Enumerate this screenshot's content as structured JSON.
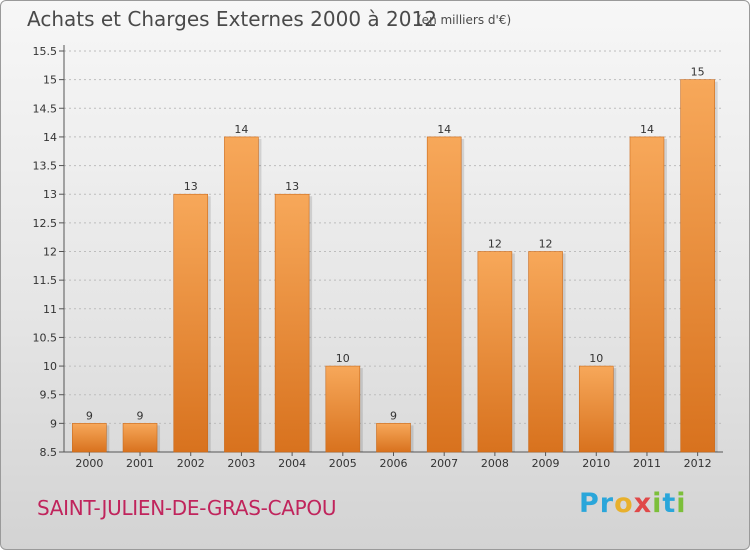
{
  "header": {
    "title": "Achats et Charges Externes 2000 à 2012",
    "unit": "(en milliers d'€)"
  },
  "footer": {
    "place": "SAINT-JULIEN-DE-GRAS-CAPOU",
    "brand": "Proxiti"
  },
  "chart_data": {
    "type": "bar",
    "title": "Achats et Charges Externes 2000 à 2012",
    "xlabel": "",
    "ylabel": "",
    "categories": [
      "2000",
      "2001",
      "2002",
      "2003",
      "2004",
      "2005",
      "2006",
      "2007",
      "2008",
      "2009",
      "2010",
      "2011",
      "2012"
    ],
    "values": [
      9,
      9,
      13,
      14,
      13,
      10,
      9,
      14,
      12,
      12,
      10,
      14,
      15
    ],
    "value_labels": [
      "9",
      "9",
      "13",
      "14",
      "13",
      "10",
      "9",
      "14",
      "12",
      "12",
      "10",
      "14",
      "15"
    ],
    "ylim": [
      8.5,
      15.5
    ],
    "yticks": [
      8.5,
      9,
      9.5,
      10,
      10.5,
      11,
      11.5,
      12,
      12.5,
      13,
      13.5,
      14,
      14.5,
      15,
      15.5
    ],
    "ytick_labels": [
      "8.5",
      "9",
      "9.5",
      "10",
      "10.5",
      "11",
      "11.5",
      "12",
      "12.5",
      "13",
      "13.5",
      "14",
      "14.5",
      "15",
      "15.5"
    ],
    "grid": true,
    "bar_color": "#f0913a"
  }
}
